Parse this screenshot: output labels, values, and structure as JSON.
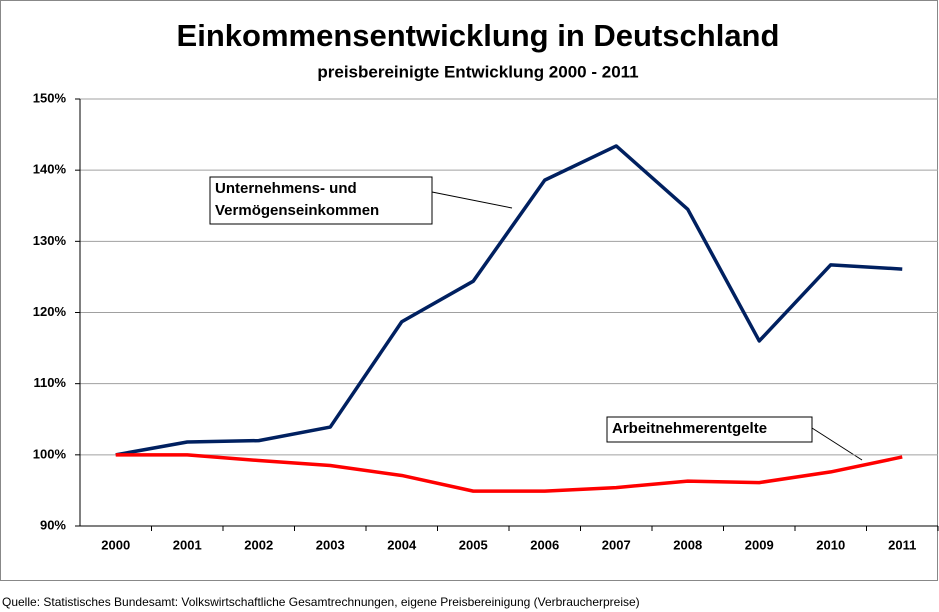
{
  "chart_data": {
    "type": "line",
    "title": "Einkommensentwicklung in Deutschland",
    "subtitle": "preisbereinigte Entwicklung 2000 - 2011",
    "categories": [
      "2000",
      "2001",
      "2002",
      "2003",
      "2004",
      "2005",
      "2006",
      "2007",
      "2008",
      "2009",
      "2010",
      "2011"
    ],
    "series": [
      {
        "name": "Unternehmens- und Vermögenseinkommen",
        "color": "#002060",
        "values": [
          100,
          101.8,
          102.0,
          103.9,
          118.7,
          124.4,
          138.6,
          143.4,
          134.5,
          116.0,
          126.7,
          126.1
        ]
      },
      {
        "name": "Arbeitnehmerentgelte",
        "color": "#ff0000",
        "values": [
          100,
          100,
          99.2,
          98.5,
          97.1,
          94.9,
          94.9,
          95.4,
          96.3,
          96.1,
          97.6,
          99.7
        ]
      }
    ],
    "annotations": [
      {
        "lines": [
          "Unternehmens- und",
          "Vermögenseinkommen"
        ]
      },
      {
        "lines": [
          "Arbeitnehmerentgelte"
        ]
      }
    ],
    "ylim": [
      90,
      150
    ],
    "yticks": [
      {
        "value": 90,
        "label": "90%"
      },
      {
        "value": 100,
        "label": "100%"
      },
      {
        "value": 110,
        "label": "110%"
      },
      {
        "value": 120,
        "label": "120%"
      },
      {
        "value": 130,
        "label": "130%"
      },
      {
        "value": 140,
        "label": "140%"
      },
      {
        "value": 150,
        "label": "150%"
      }
    ],
    "grid": true,
    "source": "Quelle: Statistisches Bundesamt: Volkswirtschaftliche Gesamtrechnungen, eigene Preisbereinigung (Verbraucherpreise)"
  }
}
